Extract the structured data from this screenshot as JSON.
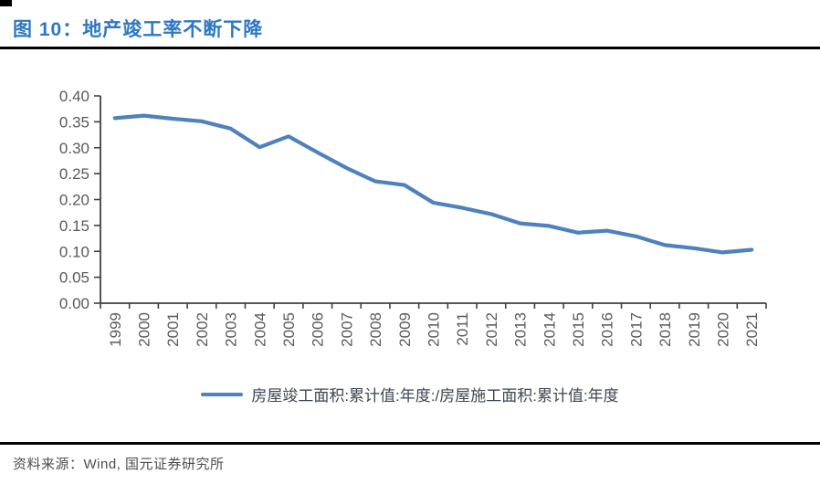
{
  "figure": {
    "title": "图 10：地产竣工率不断下降",
    "title_color": "#2D78C3"
  },
  "chart_data": {
    "type": "line",
    "title": "",
    "xlabel": "",
    "ylabel": "",
    "x": [
      "1999",
      "2000",
      "2001",
      "2002",
      "2003",
      "2004",
      "2005",
      "2006",
      "2007",
      "2008",
      "2009",
      "2010",
      "2011",
      "2012",
      "2013",
      "2014",
      "2015",
      "2016",
      "2017",
      "2018",
      "2019",
      "2020",
      "2021"
    ],
    "series": [
      {
        "name": "房屋竣工面积:累计值:年度:/房屋施工面积:累计值:年度",
        "color": "#4F81BD",
        "values": [
          0.357,
          0.362,
          0.356,
          0.351,
          0.337,
          0.301,
          0.322,
          0.291,
          0.261,
          0.235,
          0.228,
          0.194,
          0.184,
          0.172,
          0.154,
          0.149,
          0.136,
          0.14,
          0.129,
          0.112,
          0.106,
          0.098,
          0.103
        ]
      }
    ],
    "ylim": [
      0.0,
      0.4
    ],
    "ytick_labels": [
      "0.00",
      "0.05",
      "0.10",
      "0.15",
      "0.20",
      "0.25",
      "0.30",
      "0.35",
      "0.40"
    ],
    "grid": false,
    "legend_position": "bottom",
    "axis_color": "#404040",
    "tick_label_color": "#595959"
  },
  "source": {
    "label": "资料来源：Wind, 国元证券研究所"
  }
}
